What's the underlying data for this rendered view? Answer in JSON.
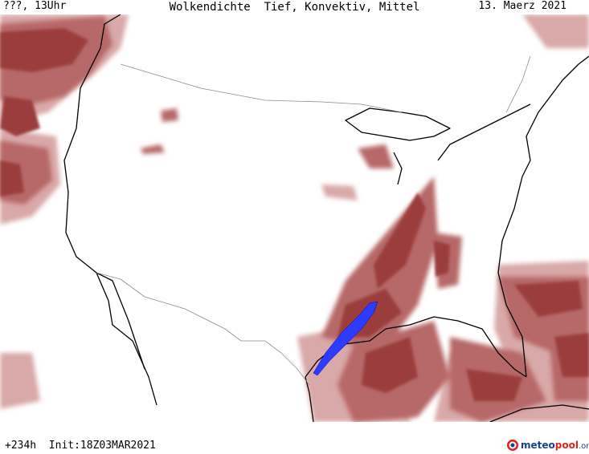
{
  "header": {
    "left": "???, 13Uhr",
    "title": "Wolkendichte  Tief, Konvektiv, Mittel",
    "right": "13. Maerz 2021"
  },
  "footer": {
    "left": "+234h  Init:18Z03MAR2021"
  },
  "logo": {
    "part1": "meteo",
    "part2": "pool",
    "part3": ".org"
  },
  "colors": {
    "cloud_dark": "#9b3c3c",
    "cloud_mid": "#b86a6a",
    "cloud_light": "#d4a0a0",
    "convective": "#2b3cff",
    "coast": "#000000",
    "border": "#8c8c8c"
  }
}
